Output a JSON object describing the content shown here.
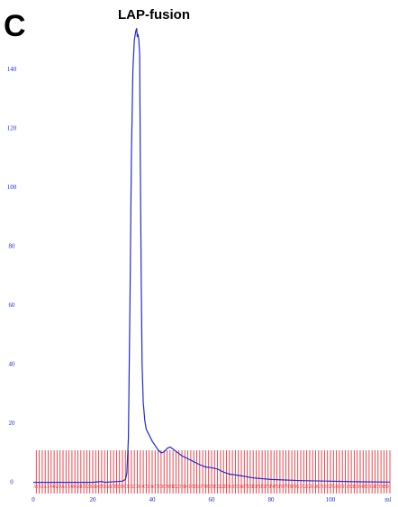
{
  "panel_letter": "C",
  "colors": {
    "trace": "#1f2bd6",
    "fractions": "#e8333a",
    "axis_text": "#1f2bd6"
  },
  "chart_data": {
    "type": "line",
    "title": "LAP-fusion",
    "xlabel": "",
    "ylabel": "",
    "x_unit": "ml",
    "xlim": [
      0,
      120
    ],
    "ylim": [
      -5,
      155
    ],
    "x_ticks": [
      0,
      20,
      40,
      60,
      80,
      100
    ],
    "y_ticks": [
      0,
      20,
      40,
      60,
      80,
      100,
      120,
      140
    ],
    "grid": false,
    "legend": "none",
    "series": [
      {
        "x": [
          0,
          10,
          20,
          23,
          24,
          30,
          31,
          31.5,
          32,
          32.5,
          33,
          33.5,
          34,
          34.5,
          34.8,
          35,
          35.2,
          35.5,
          35.8,
          36,
          36.3,
          36.6,
          37,
          37.5,
          38,
          39,
          40,
          41,
          42,
          43,
          44,
          45,
          46,
          47,
          48,
          50,
          52,
          54,
          56,
          58,
          60,
          62,
          64,
          66,
          68,
          70,
          74,
          80,
          90,
          100,
          110,
          120
        ],
        "y": [
          0,
          0,
          0,
          0.3,
          0,
          0.4,
          1,
          3,
          15,
          60,
          110,
          140,
          150,
          153,
          154,
          151,
          152,
          150,
          145,
          110,
          70,
          40,
          27,
          21,
          18,
          16,
          14,
          12.5,
          11,
          10,
          10.3,
          11.5,
          12,
          11.3,
          10.5,
          9,
          8,
          7,
          6,
          5.2,
          5,
          4.5,
          3.5,
          2.8,
          2.5,
          2.2,
          1.5,
          1,
          0.6,
          0.4,
          0.2,
          0.1
        ]
      }
    ],
    "fractions": {
      "x_start": 1,
      "x_end": 120,
      "count": 120,
      "label_text": "A1A2A3A4A5A6A7A8A9B1B2B3B4B5B6B7B8B9C1C2C3C4C5C6C7C8C9D1D2D3D4D5D6D7D8D9E1E2E3E4E5E6E7E8E9F1F2F3F4F5F6F7F8F9G1G2G3G4G5G6G7G8G9H1H2H3H4H5H6H7H8H9"
    }
  }
}
